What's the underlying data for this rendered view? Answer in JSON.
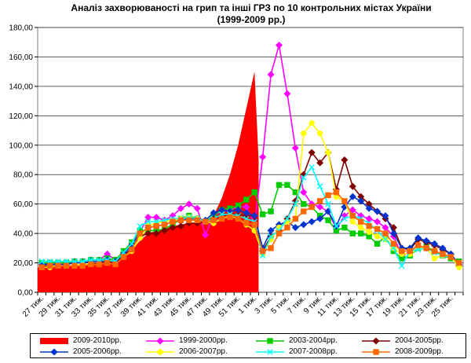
{
  "chart_data": {
    "type": "line",
    "title": "Аналіз захворюваності на грип та інші ГРЗ по 10 контрольних містах України",
    "subtitle": "(1999-2009 рр.)",
    "xlabel": "",
    "ylabel": "",
    "ylim": [
      0,
      180
    ],
    "ytick_labels": [
      "0,00",
      "20,00",
      "40,00",
      "60,00",
      "80,00",
      "100,00",
      "120,00",
      "140,00",
      "160,00",
      "180,00"
    ],
    "grid": true,
    "legend_position": "bottom",
    "categories": [
      "27 тиж.",
      "28 тиж.",
      "29 тиж.",
      "30 тиж.",
      "31 тиж.",
      "32 тиж.",
      "33 тиж.",
      "34 тиж.",
      "35 тиж.",
      "36 тиж.",
      "37 тиж.",
      "38 тиж.",
      "39 тиж.",
      "40 тиж.",
      "41 тиж.",
      "42 тиж.",
      "43 тиж.",
      "44 тиж.",
      "45 тиж.",
      "46 тиж.",
      "47 тиж.",
      "48 тиж.",
      "49 тиж.",
      "50 тиж.",
      "51 тиж.",
      "52 тиж.",
      "1 тиж.",
      "2 тиж.",
      "3 тиж.",
      "4 тиж.",
      "5 тиж.",
      "6 тиж.",
      "7 тиж.",
      "8 тиж.",
      "9 тиж.",
      "10 тиж.",
      "11 тиж.",
      "12 тиж.",
      "13 тиж.",
      "14 тиж.",
      "15 тиж.",
      "16 тиж.",
      "17 тиж.",
      "18 тиж.",
      "19 тиж.",
      "20 тиж.",
      "21 тиж.",
      "22 тиж.",
      "23 тиж.",
      "24 тиж.",
      "25 тиж.",
      "26 тиж."
    ],
    "tick_labels": [
      "27 тиж.",
      "29 тиж.",
      "31 тиж.",
      "33 тиж.",
      "35 тиж.",
      "37 тиж.",
      "39 тиж.",
      "41 тиж.",
      "43 тиж.",
      "45 тиж.",
      "47 тиж.",
      "49 тиж.",
      "51 тиж.",
      "1 тиж.",
      "3 тиж.",
      "5 тиж.",
      "7 тиж.",
      "9 тиж.",
      "11 тиж.",
      "13 тиж.",
      "15 тиж.",
      "17 тиж.",
      "19 тиж.",
      "21 тиж.",
      "23 тиж.",
      "25 тиж."
    ],
    "area_series": {
      "name": "2009-2010рр.",
      "color": "#ff0000",
      "values": [
        17,
        18,
        18,
        18,
        18,
        18,
        19,
        20,
        21,
        20,
        24,
        29,
        35,
        40,
        42,
        43,
        45,
        46,
        47,
        47,
        48,
        52,
        64,
        80,
        100,
        125,
        150
      ]
    },
    "series": [
      {
        "name": "1999-2000рр.",
        "color": "#ff00ff",
        "marker": "diamond",
        "values": [
          19,
          20,
          20,
          20,
          21,
          21,
          22,
          22,
          26,
          22,
          27,
          33,
          41,
          51,
          51,
          49,
          52,
          57,
          60,
          57,
          39,
          52,
          55,
          56,
          58,
          58,
          46,
          92,
          148,
          168,
          135,
          98,
          68,
          60,
          58,
          55,
          43,
          52,
          56,
          52,
          50,
          48,
          44,
          38,
          25,
          27,
          30,
          30,
          28,
          25,
          24,
          20
        ]
      },
      {
        "name": "2003-2004рр.",
        "color": "#00cc00",
        "marker": "square",
        "values": [
          20,
          20,
          20,
          20,
          21,
          21,
          22,
          22,
          23,
          22,
          28,
          34,
          42,
          42,
          42,
          43,
          46,
          50,
          52,
          50,
          48,
          52,
          56,
          57,
          59,
          63,
          68,
          53,
          55,
          73,
          73,
          68,
          60,
          58,
          52,
          49,
          42,
          44,
          40,
          40,
          38,
          33,
          38,
          28,
          23,
          25,
          30,
          31,
          28,
          25,
          23,
          21
        ]
      },
      {
        "name": "2004-2005рр.",
        "color": "#800000",
        "marker": "diamond",
        "values": [
          18,
          18,
          18,
          18,
          18,
          19,
          19,
          20,
          21,
          20,
          25,
          30,
          38,
          40,
          40,
          42,
          44,
          45,
          47,
          47,
          48,
          50,
          52,
          53,
          53,
          52,
          52,
          28,
          38,
          42,
          50,
          62,
          80,
          95,
          88,
          95,
          70,
          90,
          72,
          65,
          60,
          55,
          50,
          44,
          30,
          29,
          36,
          34,
          32,
          29,
          26,
          18
        ]
      },
      {
        "name": "2005-2006рр.",
        "color": "#0033cc",
        "marker": "diamond",
        "values": [
          19,
          19,
          19,
          19,
          20,
          20,
          21,
          21,
          22,
          21,
          26,
          32,
          40,
          44,
          45,
          46,
          48,
          49,
          50,
          50,
          49,
          54,
          56,
          55,
          56,
          54,
          52,
          30,
          42,
          46,
          48,
          44,
          46,
          48,
          50,
          55,
          45,
          58,
          65,
          62,
          57,
          55,
          52,
          40,
          30,
          30,
          37,
          35,
          33,
          30,
          26,
          19
        ]
      },
      {
        "name": "2006-2007рр.",
        "color": "#ffff00",
        "marker": "circle",
        "values": [
          17,
          17,
          18,
          18,
          18,
          19,
          19,
          19,
          20,
          19,
          24,
          28,
          37,
          45,
          47,
          48,
          49,
          50,
          51,
          50,
          48,
          47,
          50,
          52,
          50,
          46,
          42,
          26,
          36,
          44,
          48,
          50,
          108,
          115,
          108,
          95,
          65,
          62,
          48,
          44,
          41,
          38,
          36,
          30,
          26,
          26,
          30,
          30,
          23,
          25,
          24,
          17
        ]
      },
      {
        "name": "2007-2008рр.",
        "color": "#00ffff",
        "marker": "x",
        "values": [
          21,
          21,
          21,
          21,
          21,
          21,
          22,
          22,
          22,
          21,
          27,
          33,
          45,
          48,
          48,
          49,
          50,
          50,
          51,
          50,
          48,
          50,
          53,
          53,
          52,
          50,
          48,
          25,
          38,
          42,
          50,
          60,
          78,
          85,
          72,
          60,
          45,
          50,
          52,
          50,
          47,
          42,
          36,
          30,
          18,
          28,
          29,
          30,
          27,
          25,
          24,
          20
        ]
      },
      {
        "name": "2008-2009рр.",
        "color": "#ff6600",
        "marker": "square",
        "values": [
          17,
          18,
          18,
          18,
          18,
          18,
          19,
          19,
          20,
          19,
          24,
          29,
          40,
          44,
          45,
          46,
          48,
          49,
          49,
          49,
          48,
          49,
          50,
          51,
          50,
          47,
          46,
          28,
          30,
          40,
          44,
          50,
          55,
          58,
          62,
          66,
          68,
          62,
          52,
          48,
          45,
          43,
          40,
          33,
          28,
          28,
          32,
          30,
          28,
          26,
          24,
          20
        ]
      }
    ]
  }
}
